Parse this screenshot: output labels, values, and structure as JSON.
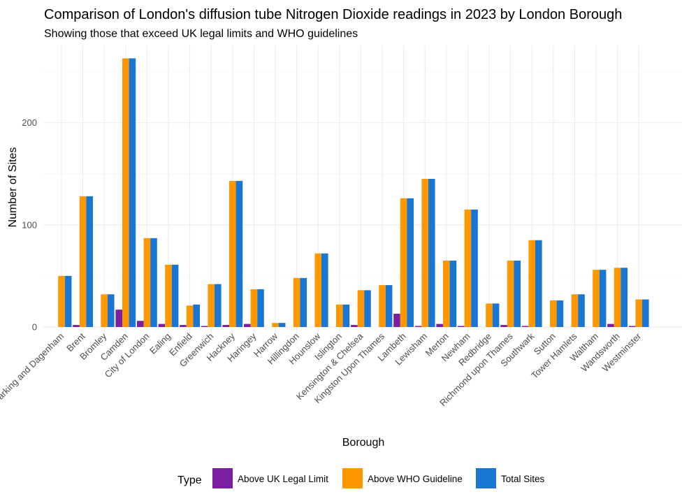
{
  "chart_data": {
    "type": "bar",
    "title": "Comparison of London's diffusion tube Nitrogen Dioxide readings in 2023 by London Borough",
    "subtitle": "Showing those that exceed UK legal limits and WHO guidelines",
    "xlabel": "Borough",
    "ylabel": "Number of Sites",
    "ylim": [
      0,
      262
    ],
    "yticks": [
      0,
      100,
      200
    ],
    "grid": true,
    "legend": {
      "title": "Type",
      "position": "bottom"
    },
    "categories": [
      "Barking and Dagenham",
      "Brent",
      "Bromley",
      "Camden",
      "City of London",
      "Ealing",
      "Enfield",
      "Greenwich",
      "Hackney",
      "Haringey",
      "Harrow",
      "Hillingdon",
      "Hounslow",
      "Islington",
      "Kensington & Chelsea",
      "Kingston Upon Thames",
      "Lambeth",
      "Lewisham",
      "Merton",
      "Newham",
      "Redbridge",
      "Richmond upon Thames",
      "Southwark",
      "Sutton",
      "Tower Hamlets",
      "Waltham",
      "Wandsworth",
      "Westminster"
    ],
    "series": [
      {
        "name": "Above UK Legal Limit",
        "color": "#7b1fa2",
        "values": [
          0,
          2,
          0,
          17,
          6,
          3,
          2,
          1,
          2,
          3,
          0,
          0,
          0,
          0,
          2,
          0,
          13,
          1,
          3,
          1,
          0,
          2,
          1,
          0,
          0,
          0,
          3,
          1
        ]
      },
      {
        "name": "Above WHO Guideline",
        "color": "#ff9800",
        "values": [
          50,
          128,
          32,
          263,
          87,
          61,
          21,
          42,
          143,
          37,
          4,
          48,
          72,
          22,
          36,
          41,
          126,
          145,
          65,
          115,
          23,
          65,
          85,
          26,
          32,
          56,
          58,
          27
        ]
      },
      {
        "name": "Total Sites",
        "color": "#1976d2",
        "values": [
          50,
          128,
          32,
          263,
          87,
          61,
          22,
          42,
          143,
          37,
          4,
          48,
          72,
          22,
          36,
          41,
          126,
          145,
          65,
          115,
          23,
          65,
          85,
          26,
          32,
          56,
          58,
          27
        ]
      }
    ]
  }
}
